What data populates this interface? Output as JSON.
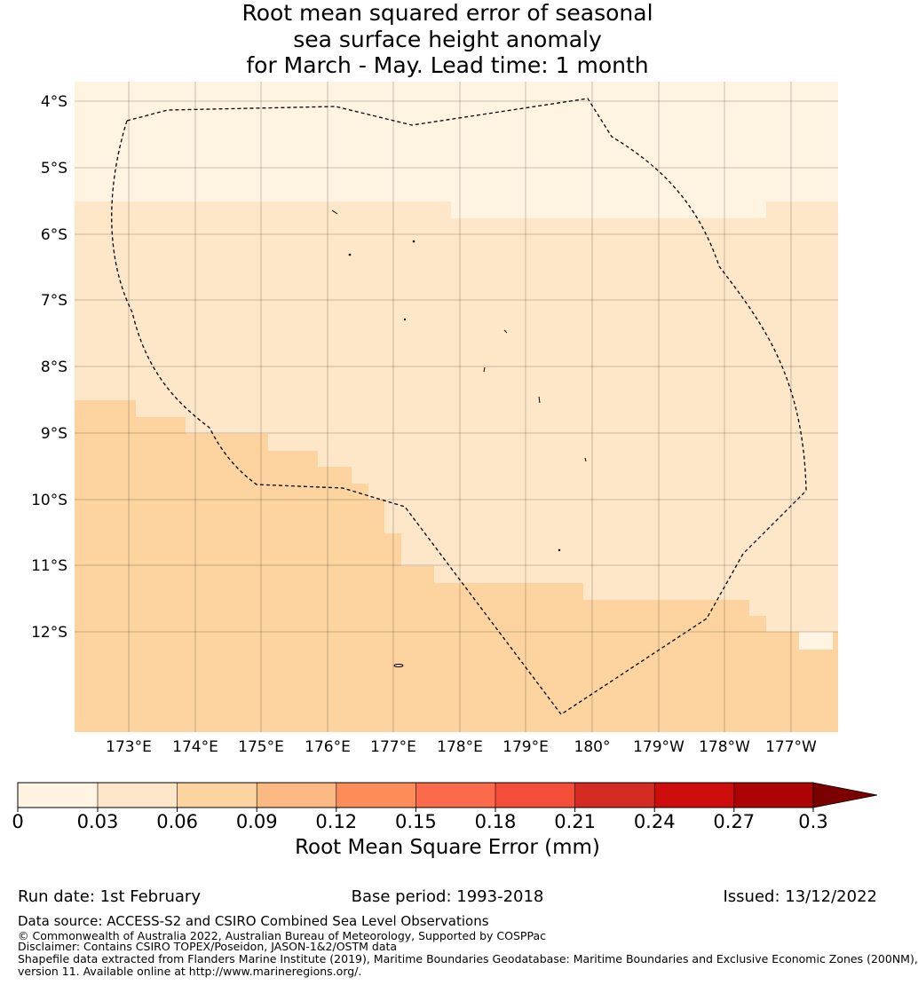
{
  "title": {
    "line1": "Root mean squared error of seasonal",
    "line2": "sea surface height anomaly",
    "line3": "for March - May. Lead time: 1 month"
  },
  "map": {
    "lat_labels": [
      "4°S",
      "5°S",
      "6°S",
      "7°S",
      "8°S",
      "9°S",
      "10°S",
      "11°S",
      "12°S"
    ],
    "lon_labels": [
      "173°E",
      "174°E",
      "175°E",
      "176°E",
      "177°E",
      "178°E",
      "179°E",
      "180°",
      "179°W",
      "178°W",
      "177°W"
    ],
    "extent": {
      "lon_min": 172.2,
      "lon_max": 183.7,
      "lat_min": -13.5,
      "lat_max": -3.7
    },
    "colors": {
      "band_0_003": "#fff3e2",
      "band_003_006": "#fee6c8",
      "band_006_009": "#fdd4a0",
      "eez_line": "#000000"
    }
  },
  "colorbar": {
    "ticks": [
      "0",
      "0.03",
      "0.06",
      "0.09",
      "0.12",
      "0.15",
      "0.18",
      "0.21",
      "0.24",
      "0.27",
      "0.3"
    ],
    "colors": [
      "#fff3e2",
      "#fee6c8",
      "#fdd4a0",
      "#fdb982",
      "#fc8c58",
      "#fb6a4a",
      "#f44d38",
      "#d42c22",
      "#cd0c0c",
      "#ac0404",
      "#7b0000"
    ],
    "label": "Root Mean Square Error (mm)"
  },
  "footer": {
    "run_date": "Run date: 1st February",
    "base_period": "Base period: 1993-2018",
    "issued": "Issued: 13/12/2022",
    "data_source": "Data source: ACCESS-S2 and CSIRO Combined Sea Level Observations",
    "copyright": "© Commonwealth of Australia 2022, Australian Bureau of Meteorology, Supported by COSPPac",
    "disclaimer": "Disclaimer: Contains CSIRO TOPEX/Poseidon, JASON-1&2/OSTM data",
    "shapefile1": "Shapefile data extracted from Flanders Marine Institute (2019), Maritime Boundaries Geodatabase: Maritime Boundaries and Exclusive Economic Zones (200NM),",
    "shapefile2": "version 11. Available online at http://www.marineregions.org/."
  }
}
